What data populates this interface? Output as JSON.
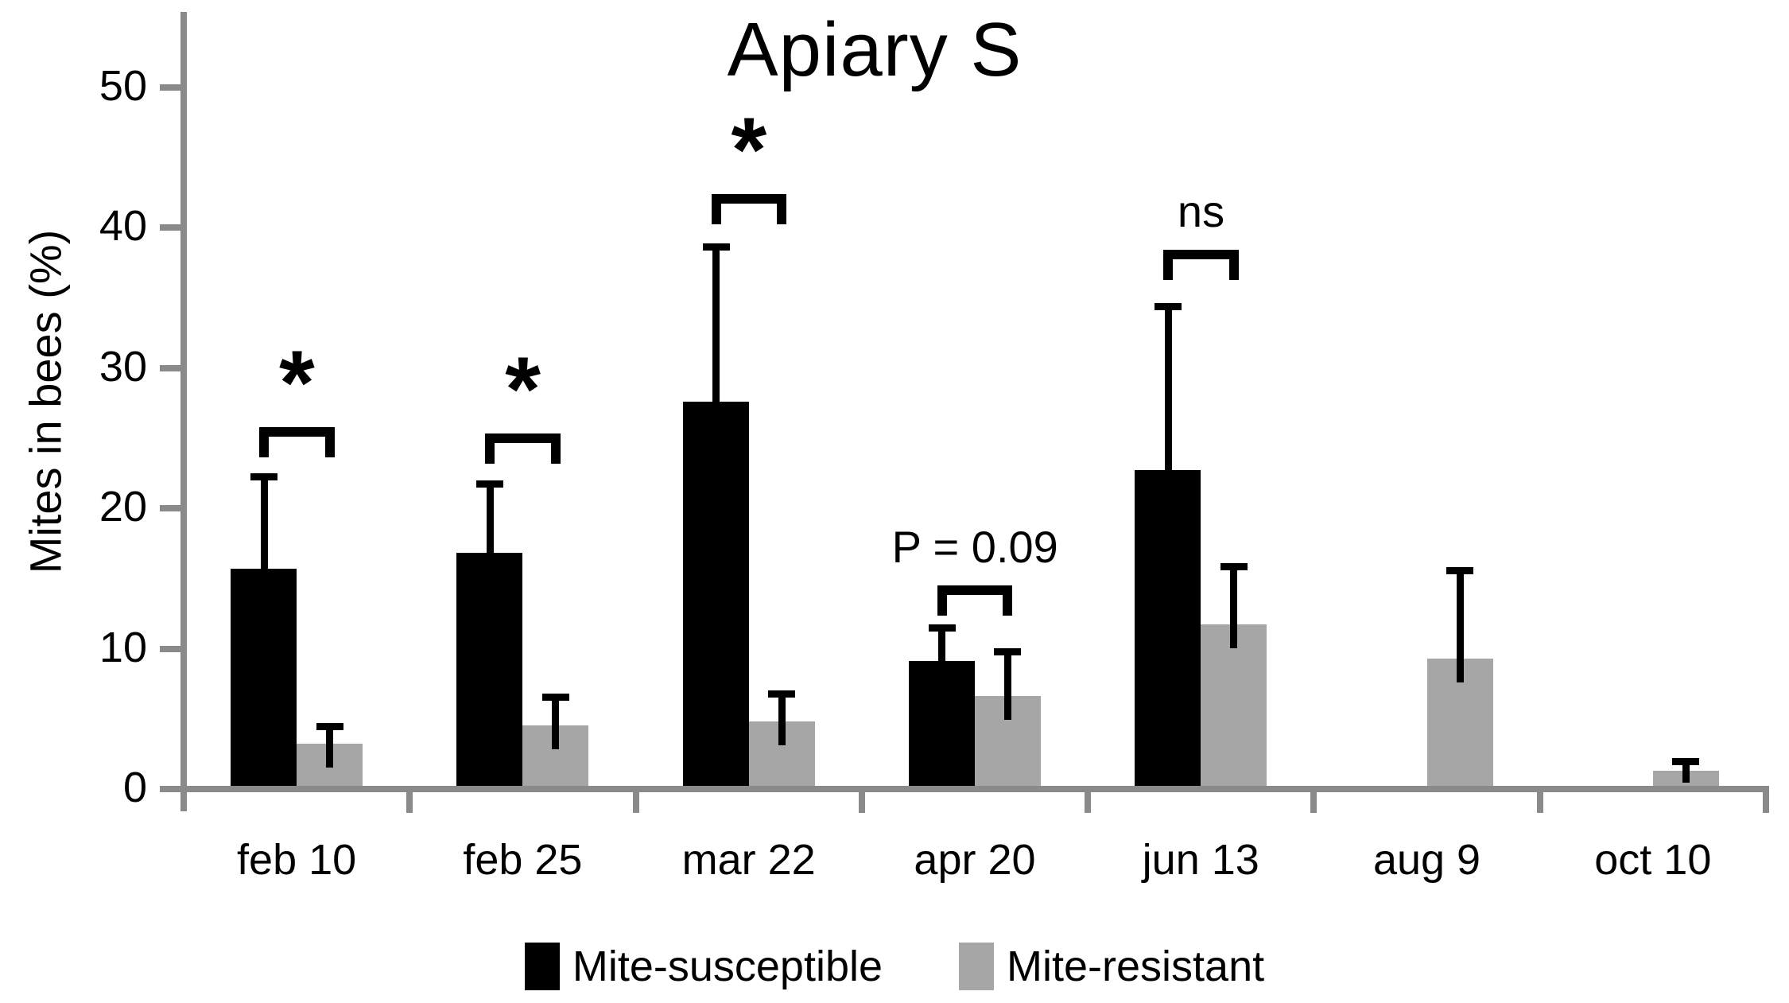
{
  "chart_data": {
    "type": "bar",
    "title": "Apiary S",
    "ylabel": "Mites in bees (%)",
    "xlabel": "",
    "categories": [
      "feb 10",
      "feb 25",
      "mar 22",
      "apr 20",
      "jun 13",
      "aug 9",
      "oct 10"
    ],
    "series": [
      {
        "name": "Mite-susceptible",
        "color": "#000000",
        "values": [
          15.6,
          16.7,
          27.5,
          9.0,
          22.6,
          0,
          0
        ],
        "error_up": [
          6.8,
          5.2,
          11.3,
          2.6,
          11.9,
          0,
          0
        ]
      },
      {
        "name": "Mite-resistant",
        "color": "#a6a6a6",
        "values": [
          3.1,
          4.4,
          4.7,
          6.5,
          11.6,
          9.2,
          1.2
        ],
        "error_up": [
          1.5,
          2.3,
          2.2,
          3.4,
          4.4,
          6.5,
          0.9
        ]
      }
    ],
    "y_ticks": [
      0,
      10,
      20,
      30,
      40,
      50
    ],
    "ylim": [
      0,
      55
    ],
    "grid": false,
    "legend_position": "bottom",
    "axis_color": "#8a8a8a",
    "annotations": [
      {
        "category_index": 0,
        "label": "*",
        "bracket_top": 25.7
      },
      {
        "category_index": 1,
        "label": "*",
        "bracket_top": 25.2
      },
      {
        "category_index": 2,
        "label": "*",
        "bracket_top": 42.3
      },
      {
        "category_index": 3,
        "label": "P = 0.09",
        "bracket_top": 14.4
      },
      {
        "category_index": 4,
        "label": "ns",
        "bracket_top": 38.3
      }
    ]
  }
}
